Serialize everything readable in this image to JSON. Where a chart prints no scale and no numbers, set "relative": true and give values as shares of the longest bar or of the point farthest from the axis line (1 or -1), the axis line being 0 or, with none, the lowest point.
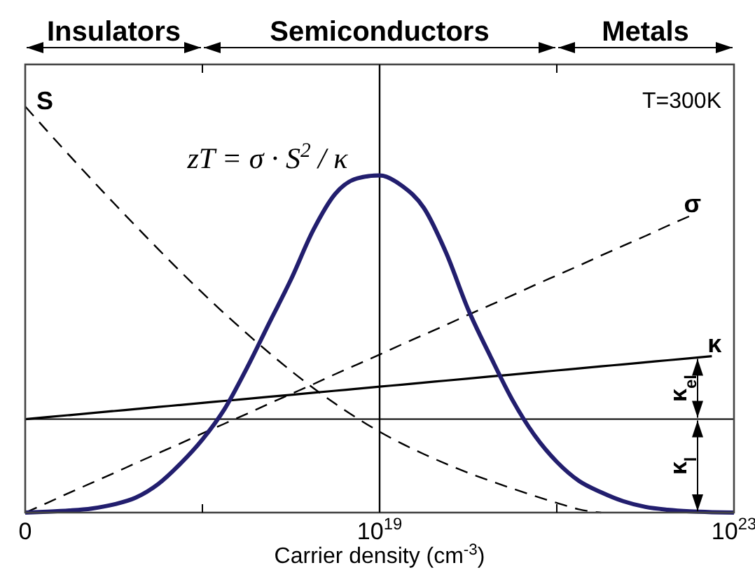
{
  "chart_data": {
    "type": "line",
    "xlabel": "Carrier density (cm$^{-3}$)",
    "relative": true,
    "categories": [
      "0",
      null,
      null,
      null,
      null,
      null,
      null,
      null,
      null,
      null,
      null,
      null,
      null,
      null,
      null,
      null,
      "10$^{19}$",
      null,
      null,
      null,
      null,
      null,
      null,
      null,
      null,
      null,
      null,
      null,
      null,
      null,
      null,
      null,
      "10$^{23}$"
    ],
    "series": [
      {
        "name": "S",
        "color": "#000000",
        "line_style": "dashed",
        "values": [
          1,
          0.939,
          0.879,
          0.82,
          0.762,
          0.705,
          0.649,
          0.594,
          0.541,
          0.49,
          0.441,
          0.394,
          0.349,
          0.307,
          0.268,
          0.232,
          0.199,
          0.17,
          0.144,
          0.12,
          0.098,
          0.078,
          0.059,
          0.041,
          0.024,
          0.008,
          0,
          null,
          null,
          null,
          null,
          null,
          null
        ]
      },
      {
        "name": "σ",
        "color": "#000000",
        "line_style": "dashed",
        "values": [
          0,
          0.024,
          0.049,
          0.073,
          0.097,
          0.122,
          0.146,
          0.17,
          0.195,
          0.219,
          0.243,
          0.268,
          0.292,
          0.316,
          0.341,
          0.365,
          0.389,
          0.414,
          0.438,
          0.462,
          0.487,
          0.511,
          0.535,
          0.56,
          0.584,
          0.608,
          0.633,
          0.657,
          0.681,
          0.706,
          0.73,
          null,
          null
        ]
      },
      {
        "name": "κ",
        "color": "#000000",
        "values": [
          0.23,
          0.235,
          0.24,
          0.245,
          0.25,
          0.255,
          0.26,
          0.265,
          0.27,
          0.275,
          0.28,
          0.285,
          0.29,
          0.295,
          0.3,
          0.305,
          0.31,
          0.315,
          0.32,
          0.325,
          0.33,
          0.335,
          0.34,
          0.345,
          0.35,
          0.355,
          0.36,
          0.365,
          0.37,
          0.375,
          0.38,
          0.385,
          null
        ]
      },
      {
        "color": "#221e6e",
        "values": [
          0,
          0.002,
          0.005,
          0.01,
          0.02,
          0.037,
          0.07,
          0.12,
          0.18,
          0.255,
          0.355,
          0.465,
          0.574,
          0.695,
          0.785,
          0.823,
          0.83,
          0.805,
          0.75,
          0.64,
          0.5,
          0.385,
          0.277,
          0.19,
          0.125,
          0.078,
          0.05,
          0.028,
          0.014,
          0.007,
          0.003,
          0.001,
          0
        ]
      }
    ],
    "ref_lines": [
      {
        "axis": "x",
        "value": "10$^{19}$"
      },
      {
        "axis": "y",
        "value": 0.23
      }
    ],
    "annotations": [
      "T=300K",
      "zT = σ · S$^{2}$ / κ",
      "Insulators",
      "Semiconductors",
      "Metals",
      "κ$_{el}$",
      "κ$_{l}$"
    ]
  }
}
